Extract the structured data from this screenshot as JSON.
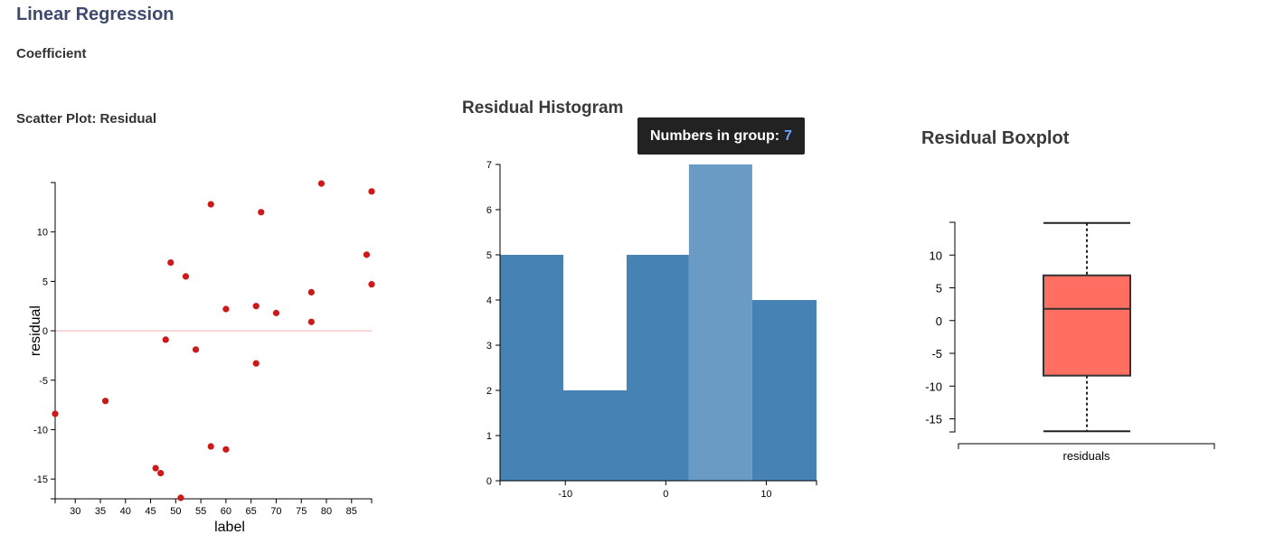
{
  "header": {
    "title": "Linear Regression",
    "coefficient_label": "Coefficient"
  },
  "tooltip": {
    "label": "Numbers in group:",
    "value": "7"
  },
  "chart_data": [
    {
      "type": "scatter",
      "title": "Scatter Plot: Residual",
      "xlabel": "label",
      "ylabel": "residual",
      "xlim": [
        26,
        89
      ],
      "ylim": [
        -17,
        15
      ],
      "xticks": [
        30,
        35,
        40,
        45,
        50,
        55,
        60,
        65,
        70,
        75,
        80,
        85
      ],
      "yticks": [
        -15,
        -10,
        -5,
        0,
        5,
        10
      ],
      "point_color": "#cc1a1a",
      "zero_line_color": "#f7caca",
      "points": [
        {
          "x": 26,
          "y": -8.4
        },
        {
          "x": 36,
          "y": -7.1
        },
        {
          "x": 46,
          "y": -13.9
        },
        {
          "x": 47,
          "y": -14.4
        },
        {
          "x": 48,
          "y": -0.9
        },
        {
          "x": 49,
          "y": 6.9
        },
        {
          "x": 51,
          "y": -16.9
        },
        {
          "x": 52,
          "y": 5.5
        },
        {
          "x": 54,
          "y": -1.9
        },
        {
          "x": 57,
          "y": 12.8
        },
        {
          "x": 57,
          "y": -11.7
        },
        {
          "x": 60,
          "y": 2.2
        },
        {
          "x": 60,
          "y": -12.0
        },
        {
          "x": 66,
          "y": 2.5
        },
        {
          "x": 66,
          "y": -3.3
        },
        {
          "x": 67,
          "y": 12.0
        },
        {
          "x": 70,
          "y": 1.8
        },
        {
          "x": 77,
          "y": 3.9
        },
        {
          "x": 77,
          "y": 0.9
        },
        {
          "x": 79,
          "y": 14.9
        },
        {
          "x": 88,
          "y": 7.7
        },
        {
          "x": 89,
          "y": 14.1
        },
        {
          "x": 89,
          "y": 4.7
        }
      ]
    },
    {
      "type": "bar",
      "title": "Residual Histogram",
      "xlim": [
        -16.5,
        15
      ],
      "ylim": [
        0,
        7
      ],
      "xticks": [
        -10,
        0,
        10
      ],
      "yticks": [
        0,
        1,
        2,
        3,
        4,
        5,
        6,
        7
      ],
      "bar_color": "#4682b4",
      "highlight_color": "#6a9bc4",
      "bins": [
        {
          "x0": -16.5,
          "x1": -10.2,
          "count": 5,
          "highlighted": false
        },
        {
          "x0": -10.2,
          "x1": -3.9,
          "count": 2,
          "highlighted": false
        },
        {
          "x0": -3.9,
          "x1": 2.3,
          "count": 5,
          "highlighted": false
        },
        {
          "x0": 2.3,
          "x1": 8.6,
          "count": 7,
          "highlighted": true
        },
        {
          "x0": 8.6,
          "x1": 15.0,
          "count": 4,
          "highlighted": false
        }
      ]
    },
    {
      "type": "boxplot",
      "title": "Residual Boxplot",
      "category": "residuals",
      "ylim": [
        -17,
        15
      ],
      "yticks": [
        -15,
        -10,
        -5,
        0,
        5,
        10
      ],
      "box_color": "#ff6f61",
      "stats": {
        "min": -16.9,
        "q1": -8.4,
        "median": 1.8,
        "q3": 6.9,
        "max": 14.9
      }
    }
  ]
}
